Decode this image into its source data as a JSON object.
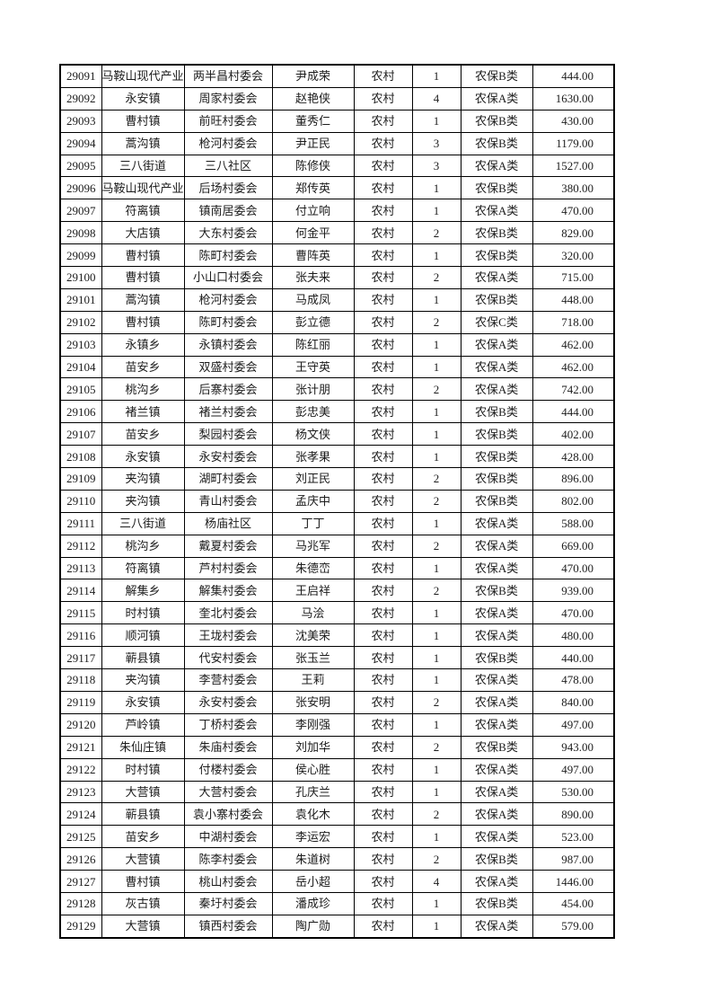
{
  "page": {
    "background": "#ffffff",
    "text_color": "#1c1c1c",
    "border_color": "#000000"
  },
  "table": {
    "cell_names": [
      "record-id-cell",
      "town-cell",
      "village-committee-cell",
      "person-name-cell",
      "household-type-cell",
      "person-count-cell",
      "insurance-category-cell",
      "amount-cell"
    ],
    "rows": [
      [
        "29091",
        "马鞍山现代产业",
        "两半昌村委会",
        "尹成荣",
        "农村",
        "1",
        "农保B类",
        "444.00"
      ],
      [
        "29092",
        "永安镇",
        "周家村委会",
        "赵艳侠",
        "农村",
        "4",
        "农保A类",
        "1630.00"
      ],
      [
        "29093",
        "曹村镇",
        "前旺村委会",
        "董秀仁",
        "农村",
        "1",
        "农保B类",
        "430.00"
      ],
      [
        "29094",
        "蒿沟镇",
        "枪河村委会",
        "尹正民",
        "农村",
        "3",
        "农保B类",
        "1179.00"
      ],
      [
        "29095",
        "三八街道",
        "三八社区",
        "陈修侠",
        "农村",
        "3",
        "农保A类",
        "1527.00"
      ],
      [
        "29096",
        "马鞍山现代产业",
        "后场村委会",
        "郑传英",
        "农村",
        "1",
        "农保B类",
        "380.00"
      ],
      [
        "29097",
        "符离镇",
        "镇南居委会",
        "付立响",
        "农村",
        "1",
        "农保A类",
        "470.00"
      ],
      [
        "29098",
        "大店镇",
        "大东村委会",
        "何金平",
        "农村",
        "2",
        "农保B类",
        "829.00"
      ],
      [
        "29099",
        "曹村镇",
        "陈町村委会",
        "曹阵英",
        "农村",
        "1",
        "农保B类",
        "320.00"
      ],
      [
        "29100",
        "曹村镇",
        "小山口村委会",
        "张夫来",
        "农村",
        "2",
        "农保A类",
        "715.00"
      ],
      [
        "29101",
        "蒿沟镇",
        "枪河村委会",
        "马成凤",
        "农村",
        "1",
        "农保B类",
        "448.00"
      ],
      [
        "29102",
        "曹村镇",
        "陈町村委会",
        "彭立德",
        "农村",
        "2",
        "农保C类",
        "718.00"
      ],
      [
        "29103",
        "永镇乡",
        "永镇村委会",
        "陈红丽",
        "农村",
        "1",
        "农保A类",
        "462.00"
      ],
      [
        "29104",
        "苗安乡",
        "双盛村委会",
        "王守英",
        "农村",
        "1",
        "农保A类",
        "462.00"
      ],
      [
        "29105",
        "桃沟乡",
        "后寨村委会",
        "张计朋",
        "农村",
        "2",
        "农保A类",
        "742.00"
      ],
      [
        "29106",
        "褚兰镇",
        "褚兰村委会",
        "彭忠美",
        "农村",
        "1",
        "农保B类",
        "444.00"
      ],
      [
        "29107",
        "苗安乡",
        "梨园村委会",
        "杨文侠",
        "农村",
        "1",
        "农保B类",
        "402.00"
      ],
      [
        "29108",
        "永安镇",
        "永安村委会",
        "张孝果",
        "农村",
        "1",
        "农保B类",
        "428.00"
      ],
      [
        "29109",
        "夹沟镇",
        "湖町村委会",
        "刘正民",
        "农村",
        "2",
        "农保B类",
        "896.00"
      ],
      [
        "29110",
        "夹沟镇",
        "青山村委会",
        "孟庆中",
        "农村",
        "2",
        "农保B类",
        "802.00"
      ],
      [
        "29111",
        "三八街道",
        "杨庙社区",
        "丁丁",
        "农村",
        "1",
        "农保A类",
        "588.00"
      ],
      [
        "29112",
        "桃沟乡",
        "戴夏村委会",
        "马兆军",
        "农村",
        "2",
        "农保A类",
        "669.00"
      ],
      [
        "29113",
        "符离镇",
        "芦村村委会",
        "朱德峦",
        "农村",
        "1",
        "农保A类",
        "470.00"
      ],
      [
        "29114",
        "解集乡",
        "解集村委会",
        "王启祥",
        "农村",
        "2",
        "农保B类",
        "939.00"
      ],
      [
        "29115",
        "时村镇",
        "奎北村委会",
        "马浍",
        "农村",
        "1",
        "农保A类",
        "470.00"
      ],
      [
        "29116",
        "顺河镇",
        "王垅村委会",
        "沈美荣",
        "农村",
        "1",
        "农保A类",
        "480.00"
      ],
      [
        "29117",
        "蕲县镇",
        "代安村委会",
        "张玉兰",
        "农村",
        "1",
        "农保B类",
        "440.00"
      ],
      [
        "29118",
        "夹沟镇",
        "李营村委会",
        "王莉",
        "农村",
        "1",
        "农保A类",
        "478.00"
      ],
      [
        "29119",
        "永安镇",
        "永安村委会",
        "张安明",
        "农村",
        "2",
        "农保A类",
        "840.00"
      ],
      [
        "29120",
        "芦岭镇",
        "丁桥村委会",
        "李刚强",
        "农村",
        "1",
        "农保A类",
        "497.00"
      ],
      [
        "29121",
        "朱仙庄镇",
        "朱庙村委会",
        "刘加华",
        "农村",
        "2",
        "农保B类",
        "943.00"
      ],
      [
        "29122",
        "时村镇",
        "付楼村委会",
        "侯心胜",
        "农村",
        "1",
        "农保A类",
        "497.00"
      ],
      [
        "29123",
        "大营镇",
        "大营村委会",
        "孔庆兰",
        "农村",
        "1",
        "农保A类",
        "530.00"
      ],
      [
        "29124",
        "蕲县镇",
        "袁小寨村委会",
        "袁化木",
        "农村",
        "2",
        "农保A类",
        "890.00"
      ],
      [
        "29125",
        "苗安乡",
        "中湖村委会",
        "李运宏",
        "农村",
        "1",
        "农保A类",
        "523.00"
      ],
      [
        "29126",
        "大营镇",
        "陈李村委会",
        "朱道树",
        "农村",
        "2",
        "农保B类",
        "987.00"
      ],
      [
        "29127",
        "曹村镇",
        "桃山村委会",
        "岳小超",
        "农村",
        "4",
        "农保A类",
        "1446.00"
      ],
      [
        "29128",
        "灰古镇",
        "秦圩村委会",
        "潘成珍",
        "农村",
        "1",
        "农保B类",
        "454.00"
      ],
      [
        "29129",
        "大营镇",
        "镇西村委会",
        "陶广勋",
        "农村",
        "1",
        "农保A类",
        "579.00"
      ]
    ]
  }
}
